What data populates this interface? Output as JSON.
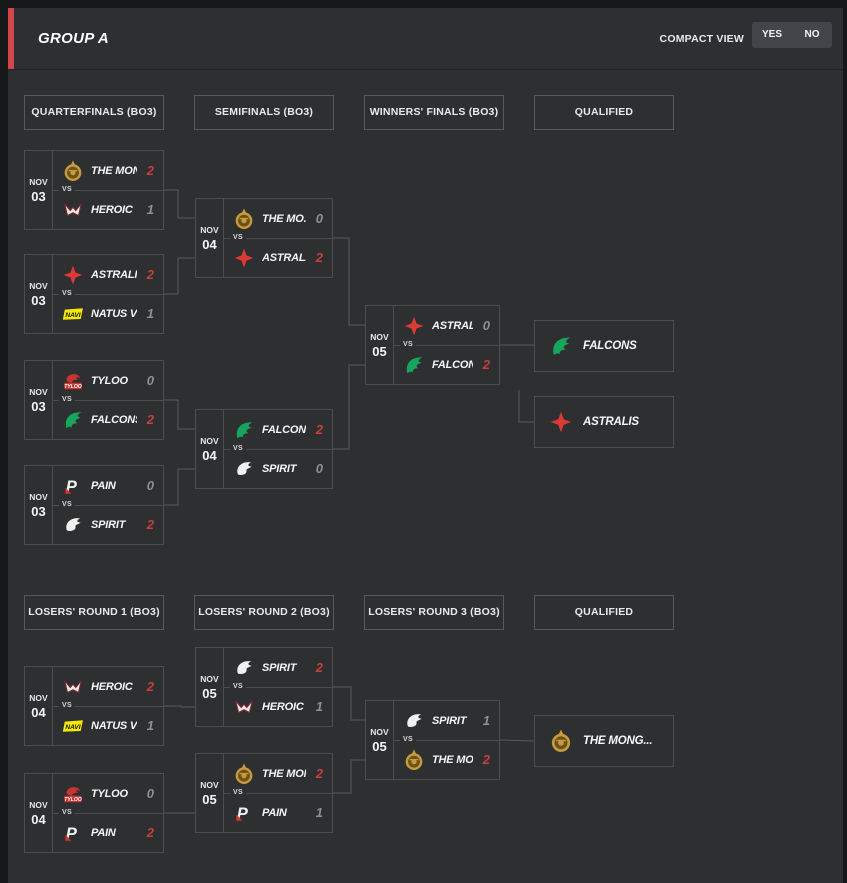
{
  "header": {
    "title": "GROUP A",
    "compact_view_label": "COMPACT VIEW",
    "compact_yes": "YES",
    "compact_no": "NO"
  },
  "labels": {
    "vs": "VS"
  },
  "colors": {
    "accent_red": "#d4464e",
    "panel_bg": "#2e2f31",
    "outer_bg": "#161718",
    "win_score": "#c6403c",
    "lose_score": "#8e9196",
    "border": "#4b4e51"
  },
  "upper_rounds": [
    "QUARTERFINALS (BO3)",
    "SEMIFINALS (BO3)",
    "WINNERS' FINALS (BO3)",
    "QUALIFIED"
  ],
  "lower_rounds": [
    "LOSERS' ROUND 1 (BO3)",
    "LOSERS' ROUND 2 (BO3)",
    "LOSERS' ROUND 3 (BO3)",
    "QUALIFIED"
  ],
  "matches": {
    "u_qf1": {
      "date": [
        "NOV",
        "03"
      ],
      "teams": [
        {
          "name": "THE MON...",
          "logo": "mongolz",
          "score": "2",
          "winner": true
        },
        {
          "name": "HEROIC",
          "logo": "heroic",
          "score": "1",
          "winner": false
        }
      ]
    },
    "u_qf2": {
      "date": [
        "NOV",
        "03"
      ],
      "teams": [
        {
          "name": "ASTRALIS",
          "logo": "astralis",
          "score": "2",
          "winner": true
        },
        {
          "name": "NATUS VI...",
          "logo": "navi",
          "score": "1",
          "winner": false
        }
      ]
    },
    "u_qf3": {
      "date": [
        "NOV",
        "03"
      ],
      "teams": [
        {
          "name": "TYLOO",
          "logo": "tyloo",
          "score": "0",
          "winner": false
        },
        {
          "name": "FALCONS",
          "logo": "falcons",
          "score": "2",
          "winner": true
        }
      ]
    },
    "u_qf4": {
      "date": [
        "NOV",
        "03"
      ],
      "teams": [
        {
          "name": "PAIN",
          "logo": "pain",
          "score": "0",
          "winner": false
        },
        {
          "name": "SPIRIT",
          "logo": "spirit",
          "score": "2",
          "winner": true
        }
      ]
    },
    "u_sf1": {
      "date": [
        "NOV",
        "04"
      ],
      "teams": [
        {
          "name": "THE MO...",
          "logo": "mongolz",
          "score": "0",
          "winner": false
        },
        {
          "name": "ASTRALIS",
          "logo": "astralis",
          "score": "2",
          "winner": true
        }
      ]
    },
    "u_sf2": {
      "date": [
        "NOV",
        "04"
      ],
      "teams": [
        {
          "name": "FALCONS",
          "logo": "falcons",
          "score": "2",
          "winner": true
        },
        {
          "name": "SPIRIT",
          "logo": "spirit",
          "score": "0",
          "winner": false
        }
      ]
    },
    "u_wf": {
      "date": [
        "NOV",
        "05"
      ],
      "teams": [
        {
          "name": "ASTRALIS",
          "logo": "astralis",
          "score": "0",
          "winner": false
        },
        {
          "name": "FALCONS",
          "logo": "falcons",
          "score": "2",
          "winner": true
        }
      ]
    },
    "l_r1m1": {
      "date": [
        "NOV",
        "04"
      ],
      "teams": [
        {
          "name": "HEROIC",
          "logo": "heroic",
          "score": "2",
          "winner": true
        },
        {
          "name": "NATUS VI...",
          "logo": "navi",
          "score": "1",
          "winner": false
        }
      ]
    },
    "l_r1m2": {
      "date": [
        "NOV",
        "04"
      ],
      "teams": [
        {
          "name": "TYLOO",
          "logo": "tyloo",
          "score": "0",
          "winner": false
        },
        {
          "name": "PAIN",
          "logo": "pain",
          "score": "2",
          "winner": true
        }
      ]
    },
    "l_r2m1": {
      "date": [
        "NOV",
        "05"
      ],
      "teams": [
        {
          "name": "SPIRIT",
          "logo": "spirit",
          "score": "2",
          "winner": true
        },
        {
          "name": "HEROIC",
          "logo": "heroic",
          "score": "1",
          "winner": false
        }
      ]
    },
    "l_r2m2": {
      "date": [
        "NOV",
        "05"
      ],
      "teams": [
        {
          "name": "THE MON...",
          "logo": "mongolz",
          "score": "2",
          "winner": true
        },
        {
          "name": "PAIN",
          "logo": "pain",
          "score": "1",
          "winner": false
        }
      ]
    },
    "l_r3": {
      "date": [
        "NOV",
        "05"
      ],
      "teams": [
        {
          "name": "SPIRIT",
          "logo": "spirit",
          "score": "1",
          "winner": false
        },
        {
          "name": "THE MON...",
          "logo": "mongolz",
          "score": "2",
          "winner": true
        }
      ]
    }
  },
  "qualified": {
    "upper": [
      {
        "name": "FALCONS",
        "logo": "falcons"
      },
      {
        "name": "ASTRALIS",
        "logo": "astralis"
      }
    ],
    "lower": [
      {
        "name": "THE MONG...",
        "logo": "mongolz"
      }
    ]
  }
}
